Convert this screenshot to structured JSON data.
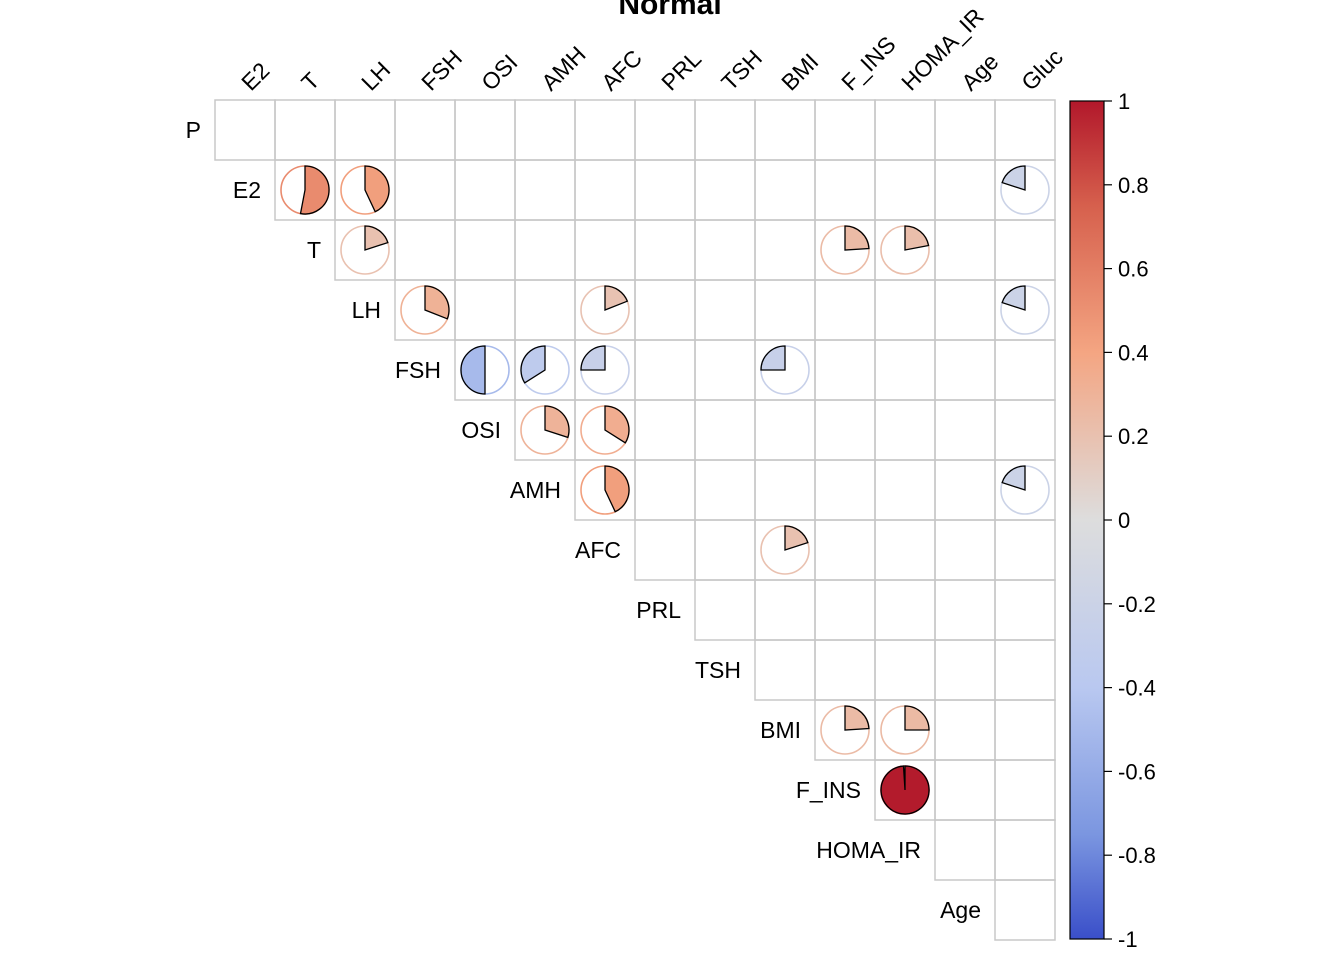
{
  "chart_data": {
    "type": "heatmap",
    "title": "Normal",
    "variables": [
      "P",
      "E2",
      "T",
      "LH",
      "FSH",
      "OSI",
      "AMH",
      "AFC",
      "PRL",
      "TSH",
      "BMI",
      "F_INS",
      "HOMA_IR",
      "Age",
      "Gluc"
    ],
    "layout": "upper-triangle",
    "cells": [
      {
        "row": "E2",
        "col": "T",
        "value": 0.53
      },
      {
        "row": "E2",
        "col": "LH",
        "value": 0.43
      },
      {
        "row": "E2",
        "col": "Gluc",
        "value": -0.2
      },
      {
        "row": "T",
        "col": "LH",
        "value": 0.2
      },
      {
        "row": "T",
        "col": "F_INS",
        "value": 0.24
      },
      {
        "row": "T",
        "col": "HOMA_IR",
        "value": 0.22
      },
      {
        "row": "LH",
        "col": "FSH",
        "value": 0.31
      },
      {
        "row": "LH",
        "col": "AFC",
        "value": 0.19
      },
      {
        "row": "LH",
        "col": "Gluc",
        "value": -0.2
      },
      {
        "row": "FSH",
        "col": "OSI",
        "value": -0.5
      },
      {
        "row": "FSH",
        "col": "AMH",
        "value": -0.34
      },
      {
        "row": "FSH",
        "col": "AFC",
        "value": -0.25
      },
      {
        "row": "FSH",
        "col": "BMI",
        "value": -0.25
      },
      {
        "row": "OSI",
        "col": "AMH",
        "value": 0.3
      },
      {
        "row": "OSI",
        "col": "AFC",
        "value": 0.34
      },
      {
        "row": "AMH",
        "col": "AFC",
        "value": 0.43
      },
      {
        "row": "AMH",
        "col": "Gluc",
        "value": -0.2
      },
      {
        "row": "AFC",
        "col": "BMI",
        "value": 0.2
      },
      {
        "row": "BMI",
        "col": "F_INS",
        "value": 0.24
      },
      {
        "row": "BMI",
        "col": "HOMA_IR",
        "value": 0.25
      },
      {
        "row": "F_INS",
        "col": "HOMA_IR",
        "value": 0.99
      }
    ],
    "colorbar": {
      "range": [
        -1,
        1
      ],
      "ticks": [
        "1",
        "0.8",
        "0.6",
        "0.4",
        "0.2",
        "0",
        "-0.2",
        "-0.4",
        "-0.6",
        "-0.8",
        "-1"
      ],
      "placement": "right"
    },
    "colors": {
      "negative_end": "#3A4FC9",
      "mid": "#DDDDDD",
      "positive_end": "#B2182B",
      "grid": "#C8C8C8"
    }
  }
}
